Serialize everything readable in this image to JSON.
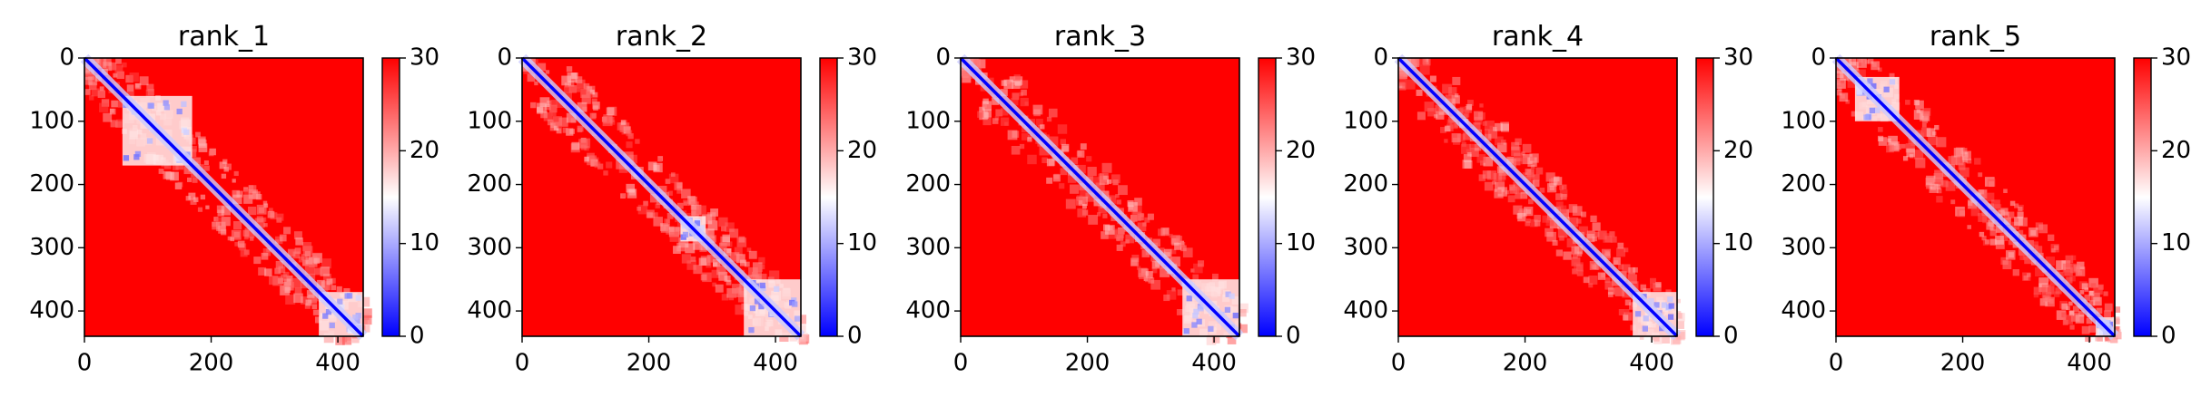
{
  "chart_data": {
    "type": "heatmap",
    "colormap": "bwr",
    "colors": {
      "low": "#0000ff",
      "mid": "#ffffff",
      "high": "#ff0000"
    },
    "shared": {
      "xlim": [
        0,
        440
      ],
      "ylim": [
        440,
        0
      ],
      "xticks": [
        "0",
        "200",
        "400"
      ],
      "yticks": [
        "0",
        "100",
        "200",
        "300",
        "400"
      ],
      "colorbar_range": [
        0,
        30
      ],
      "colorbar_ticks": [
        "0",
        "10",
        "20",
        "30"
      ]
    },
    "panels": [
      {
        "title": "rank_1",
        "domains": [
          [
            60,
            170
          ],
          [
            370,
            440
          ]
        ]
      },
      {
        "title": "rank_2",
        "domains": [
          [
            250,
            290
          ],
          [
            350,
            440
          ]
        ]
      },
      {
        "title": "rank_3",
        "domains": [
          [
            350,
            440
          ]
        ]
      },
      {
        "title": "rank_4",
        "domains": [
          [
            370,
            440
          ]
        ]
      },
      {
        "title": "rank_5",
        "domains": [
          [
            30,
            100
          ],
          [
            410,
            440
          ]
        ]
      }
    ]
  }
}
